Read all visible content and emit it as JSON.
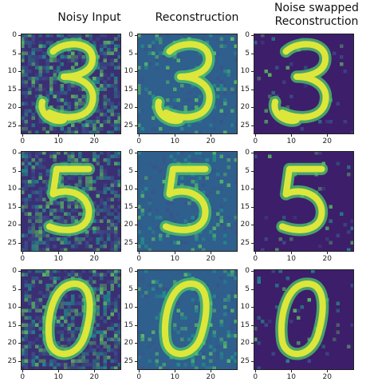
{
  "columns": [
    {
      "title": "Noisy Input",
      "noise": "high",
      "background": "#3b2f73"
    },
    {
      "title": "Reconstruction",
      "noise": "medium",
      "background": "#2f5f8c"
    },
    {
      "title": "Noise swapped\nReconstruction",
      "noise": "low",
      "background": "#3d1e6b"
    }
  ],
  "rows": [
    {
      "digit": "3"
    },
    {
      "digit": "5"
    },
    {
      "digit": "0"
    }
  ],
  "x_ticks": [
    "0",
    "10",
    "20"
  ],
  "y_ticks": [
    "0",
    "5",
    "10",
    "15",
    "20",
    "25"
  ],
  "colormap": "viridis",
  "colors": {
    "stroke": "#dde63a",
    "stroke_glow": "#4cc26a",
    "frame": "#222222"
  }
}
